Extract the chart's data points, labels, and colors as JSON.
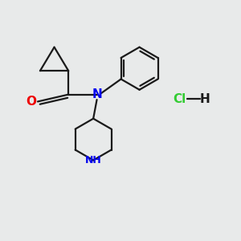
{
  "bg_color": "#e8eaea",
  "bond_color": "#1a1a1a",
  "N_color": "#0000ee",
  "O_color": "#ee0000",
  "Cl_color": "#33cc33",
  "line_width": 1.6,
  "figsize": [
    3.0,
    3.0
  ],
  "dpi": 100,
  "xlim": [
    0,
    10
  ],
  "ylim": [
    0,
    10
  ]
}
